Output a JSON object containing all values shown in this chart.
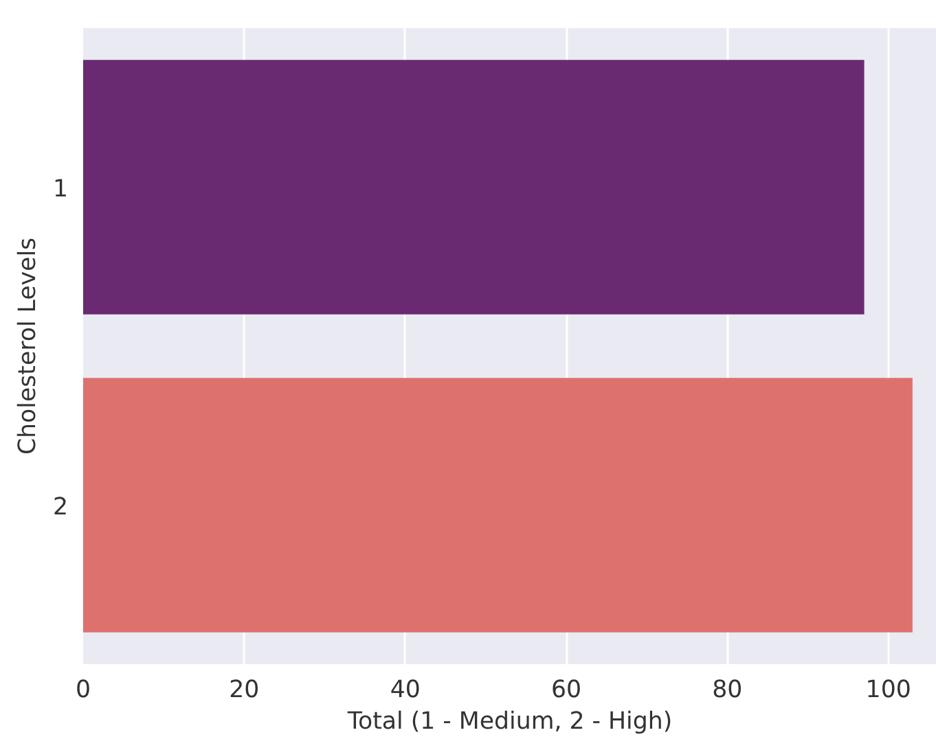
{
  "chart_data": {
    "type": "bar",
    "orientation": "horizontal",
    "xlabel": "Total (1 - Medium, 2 - High)",
    "ylabel": "Cholesterol Levels",
    "categories": [
      "1",
      "2"
    ],
    "values": [
      97,
      103
    ],
    "colors": [
      "#6a2a72",
      "#dd716e"
    ],
    "xlim": [
      0,
      106
    ],
    "xticks": [
      0,
      20,
      40,
      60,
      80,
      100
    ],
    "grid": "x"
  }
}
